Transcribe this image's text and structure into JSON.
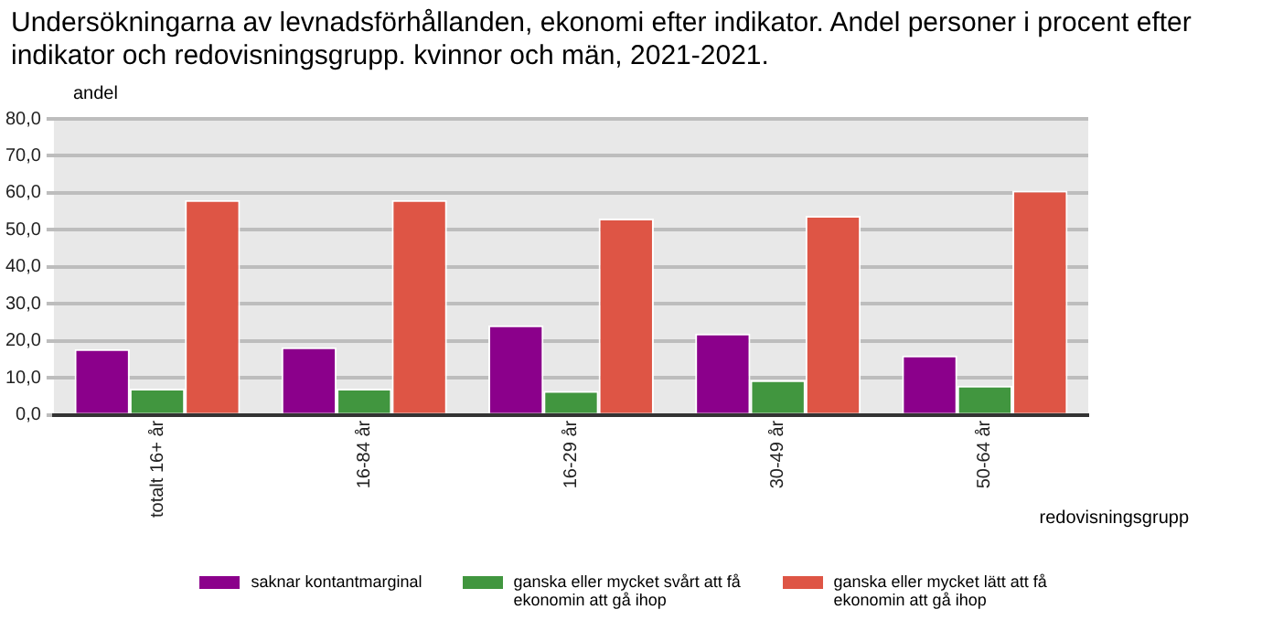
{
  "chart_data": {
    "type": "bar",
    "title": "Undersökningarna av levnadsförhållanden, ekonomi efter indikator. Andel personer i procent efter indikator och redovisningsgrupp. kvinnor och män, 2021-2021.",
    "ylabel": "andel",
    "xlabel": "redovisningsgrupp",
    "categories": [
      "totalt 16+ år",
      "16-84 år",
      "16-29 år",
      "30-49 år",
      "50-64 år"
    ],
    "series": [
      {
        "name": "saknar kontantmarginal",
        "color": "#8b008b",
        "values": [
          17.8,
          18.3,
          24.2,
          22.0,
          16.1
        ]
      },
      {
        "name": "ganska eller mycket svårt att få ekonomin att gå ihop",
        "color": "#41963f",
        "values": [
          7.1,
          7.1,
          6.5,
          9.4,
          7.9
        ]
      },
      {
        "name": "ganska eller mycket lätt att få ekonomin att gå ihop",
        "color": "#de5545",
        "values": [
          58.1,
          58.1,
          53.1,
          53.8,
          60.6
        ]
      }
    ],
    "ylim": [
      0,
      80
    ],
    "yticks": [
      {
        "value": 0,
        "label": "0,0"
      },
      {
        "value": 10,
        "label": "10,0"
      },
      {
        "value": 20,
        "label": "20,0"
      },
      {
        "value": 30,
        "label": "30,0"
      },
      {
        "value": 40,
        "label": "40,0"
      },
      {
        "value": 50,
        "label": "50,0"
      },
      {
        "value": 60,
        "label": "60,0"
      },
      {
        "value": 70,
        "label": "70,0"
      },
      {
        "value": 80,
        "label": "80,0"
      }
    ],
    "grid": "y",
    "legend": "bottom"
  }
}
